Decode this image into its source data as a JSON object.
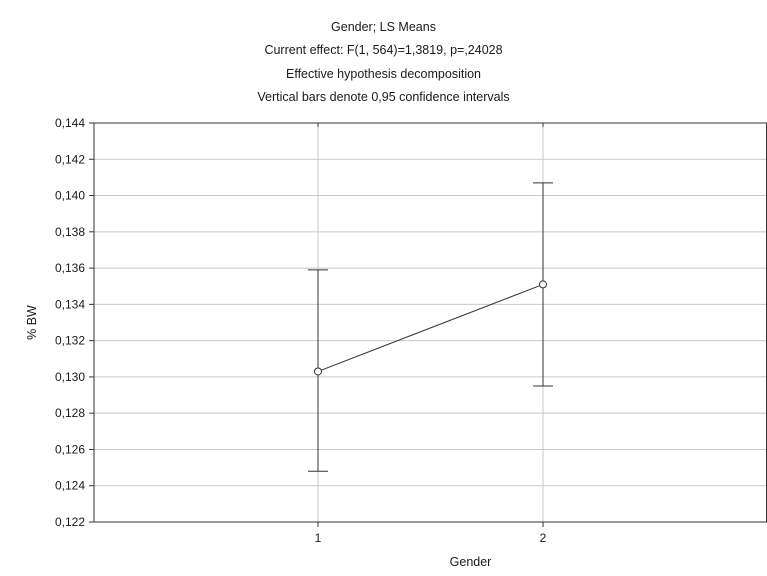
{
  "header": {
    "title": "Gender; LS Means",
    "effect": "Current effect: F(1, 564)=1,3819, p=,24028",
    "decomposition": "Effective hypothesis decomposition",
    "note": "Vertical bars denote 0,95 confidence intervals"
  },
  "chart_data": {
    "type": "line",
    "title": "Gender; LS Means",
    "xlabel": "Gender",
    "ylabel": "% BW",
    "categories": [
      "1",
      "2"
    ],
    "series": [
      {
        "values": [
          0.1303,
          0.1351
        ],
        "ci_low": [
          0.1248,
          0.1295
        ],
        "ci_high": [
          0.1359,
          0.1407
        ]
      }
    ],
    "ylim": [
      0.122,
      0.144
    ],
    "yticks": [
      "0,122",
      "0,124",
      "0,126",
      "0,128",
      "0,130",
      "0,132",
      "0,134",
      "0,136",
      "0,138",
      "0,140",
      "0,142",
      "0,144"
    ],
    "grid": true,
    "colors": {
      "line": "#333333",
      "grid": "#c8c8c8",
      "axis": "#333333"
    }
  }
}
